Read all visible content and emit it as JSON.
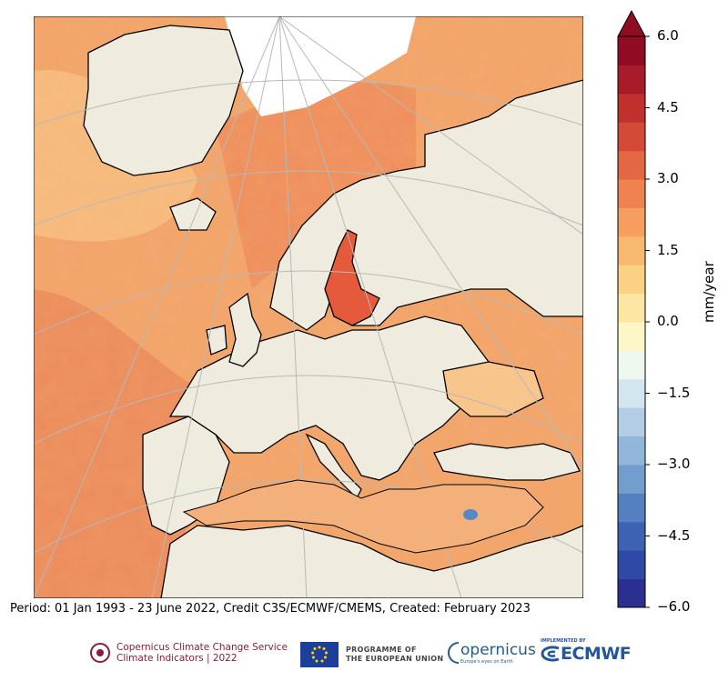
{
  "colorbar": {
    "title": "mm/year",
    "ticks": [
      "6.0",
      "4.5",
      "3.0",
      "1.5",
      "0.0",
      "−1.5",
      "−3.0",
      "−4.5",
      "−6.0"
    ],
    "range": [
      -6.0,
      6.0
    ],
    "colors": [
      "#2b2f8f",
      "#2f4aa6",
      "#3d62b4",
      "#5580bf",
      "#729dcc",
      "#92b6d9",
      "#b2cde5",
      "#d2e6f0",
      "#eef8ee",
      "#fdf6c6",
      "#fde6a4",
      "#fbd184",
      "#f8b870",
      "#f59e60",
      "#ef8250",
      "#e36742",
      "#d34a37",
      "#c1302d",
      "#a81b28",
      "#8f0c23"
    ],
    "extend": "max"
  },
  "caption": "Period: 01 Jan 1993 - 23 June 2022, Credit C3S/ECMWF/CMEMS, Created: February 2023",
  "logos": {
    "c3s_line1": "Copernicus Climate Change Service",
    "c3s_line2": "Climate Indicators | 2022",
    "eu_line1": "PROGRAMME OF",
    "eu_line2": "THE EUROPEAN UNION",
    "copernicus": "opernicus",
    "copernicus_sub": "Europe's eyes on Earth",
    "ecmwf_top": "IMPLEMENTED BY",
    "ecmwf": "ECMWF"
  },
  "map": {
    "variable": "sea level rise trend",
    "region": "Europe",
    "land_color": "#efecdf",
    "ice_color": "#ffffff"
  }
}
